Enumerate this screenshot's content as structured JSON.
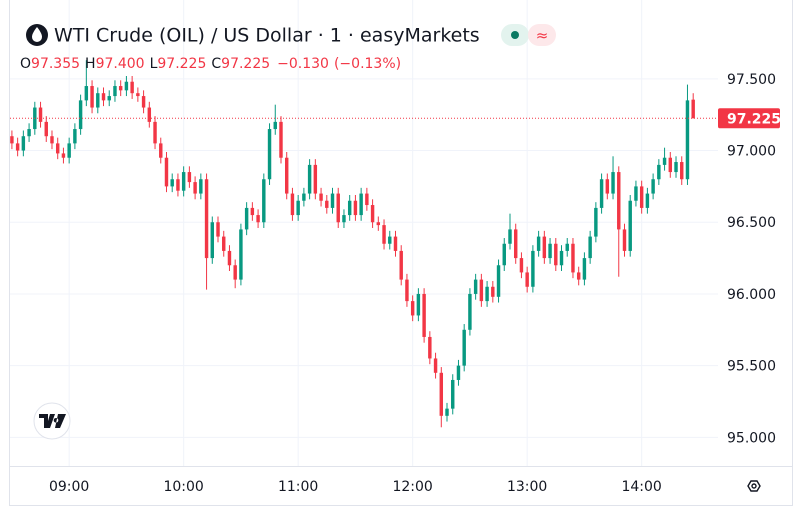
{
  "chart_data": {
    "type": "candlestick",
    "title": "WTI Crude (OIL) / US Dollar · 1 · easyMarkets",
    "badge": "≈",
    "ohlc_legend": [
      {
        "label": "O",
        "value": "97.355"
      },
      {
        "label": "H",
        "value": "97.400"
      },
      {
        "label": "L",
        "value": "97.225"
      },
      {
        "label": "C",
        "value": "97.225"
      }
    ],
    "change": "−0.130",
    "change_percent": "(−0.13%)",
    "x": [
      "08:30",
      "08:33",
      "08:36",
      "08:39",
      "08:42",
      "08:45",
      "08:48",
      "08:51",
      "08:54",
      "08:57",
      "09:00",
      "09:03",
      "09:06",
      "09:09",
      "09:12",
      "09:15",
      "09:18",
      "09:21",
      "09:24",
      "09:27",
      "09:30",
      "09:33",
      "09:36",
      "09:39",
      "09:42",
      "09:45",
      "09:48",
      "09:51",
      "09:54",
      "09:57",
      "10:00",
      "10:03",
      "10:06",
      "10:09",
      "10:12",
      "10:15",
      "10:18",
      "10:21",
      "10:24",
      "10:27",
      "10:30",
      "10:33",
      "10:36",
      "10:39",
      "10:42",
      "10:45",
      "10:48",
      "10:51",
      "10:54",
      "10:57",
      "11:00",
      "11:03",
      "11:06",
      "11:09",
      "11:12",
      "11:15",
      "11:18",
      "11:21",
      "11:24",
      "11:27",
      "11:30",
      "11:33",
      "11:36",
      "11:39",
      "11:42",
      "11:45",
      "11:48",
      "11:51",
      "11:54",
      "11:57",
      "12:00",
      "12:03",
      "12:06",
      "12:09",
      "12:12",
      "12:15",
      "12:18",
      "12:21",
      "12:24",
      "12:27",
      "12:30",
      "12:33",
      "12:36",
      "12:39",
      "12:42",
      "12:45",
      "12:48",
      "12:51",
      "12:54",
      "12:57",
      "13:00",
      "13:03",
      "13:06",
      "13:09",
      "13:12",
      "13:15",
      "13:18",
      "13:21",
      "13:24",
      "13:27",
      "13:30",
      "13:33",
      "13:36",
      "13:39",
      "13:42",
      "13:45",
      "13:48",
      "13:51",
      "13:54",
      "13:57",
      "14:00",
      "14:03",
      "14:06",
      "14:09",
      "14:12",
      "14:15",
      "14:18",
      "14:21",
      "14:24",
      "14:27"
    ],
    "open": [
      97.1,
      97.05,
      97.0,
      97.1,
      97.15,
      97.3,
      97.2,
      97.1,
      97.05,
      96.98,
      96.95,
      97.05,
      97.15,
      97.35,
      97.45,
      97.3,
      97.4,
      97.35,
      97.38,
      97.45,
      97.42,
      97.48,
      97.4,
      97.38,
      97.3,
      97.2,
      97.05,
      96.95,
      96.75,
      96.8,
      96.72,
      96.85,
      96.78,
      96.7,
      96.8,
      96.25,
      96.5,
      96.4,
      96.3,
      96.2,
      96.1,
      96.45,
      96.6,
      96.55,
      96.5,
      96.8,
      97.15,
      97.2,
      96.95,
      96.7,
      96.55,
      96.65,
      96.7,
      96.9,
      96.7,
      96.65,
      96.6,
      96.7,
      96.5,
      96.55,
      96.65,
      96.55,
      96.7,
      96.62,
      96.5,
      96.48,
      96.35,
      96.4,
      96.3,
      96.1,
      95.95,
      95.85,
      96.0,
      95.7,
      95.55,
      95.45,
      95.15,
      95.2,
      95.4,
      95.5,
      95.75,
      96.0,
      96.1,
      95.95,
      96.05,
      95.98,
      96.2,
      96.35,
      96.45,
      96.25,
      96.15,
      96.05,
      96.3,
      96.4,
      96.25,
      96.35,
      96.2,
      96.3,
      96.35,
      96.15,
      96.1,
      96.25,
      96.4,
      96.6,
      96.8,
      96.7,
      96.85,
      96.45,
      96.3,
      96.65,
      96.75,
      96.6,
      96.7,
      96.8,
      96.9,
      96.95,
      96.85,
      96.92,
      96.8,
      97.355
    ],
    "high": [
      97.14,
      97.09,
      97.14,
      97.19,
      97.34,
      97.34,
      97.24,
      97.14,
      97.09,
      97.02,
      97.09,
      97.19,
      97.39,
      97.63,
      97.49,
      97.44,
      97.44,
      97.42,
      97.49,
      97.49,
      97.52,
      97.52,
      97.44,
      97.42,
      97.34,
      97.24,
      97.09,
      96.99,
      96.84,
      96.84,
      96.89,
      96.89,
      96.82,
      96.84,
      96.84,
      96.54,
      96.54,
      96.44,
      96.34,
      96.24,
      96.49,
      96.64,
      96.64,
      96.59,
      96.84,
      97.19,
      97.32,
      97.24,
      96.99,
      96.74,
      96.69,
      96.74,
      96.94,
      96.94,
      96.74,
      96.69,
      96.74,
      96.74,
      96.59,
      96.69,
      96.69,
      96.74,
      96.74,
      96.66,
      96.54,
      96.52,
      96.44,
      96.44,
      96.34,
      96.14,
      95.99,
      96.04,
      96.04,
      95.74,
      95.59,
      95.49,
      95.24,
      95.44,
      95.54,
      95.79,
      96.04,
      96.14,
      96.14,
      96.09,
      96.09,
      96.24,
      96.39,
      96.56,
      96.49,
      96.29,
      96.19,
      96.34,
      96.44,
      96.44,
      96.39,
      96.39,
      96.34,
      96.39,
      96.39,
      96.19,
      96.29,
      96.44,
      96.64,
      96.84,
      96.84,
      96.96,
      96.89,
      96.49,
      96.69,
      96.79,
      96.79,
      96.74,
      96.84,
      96.94,
      97.02,
      96.99,
      96.96,
      96.96,
      97.46,
      97.4
    ],
    "low": [
      97.01,
      96.96,
      96.96,
      97.06,
      97.11,
      97.16,
      97.06,
      97.01,
      96.94,
      96.91,
      96.91,
      97.01,
      97.11,
      97.31,
      97.26,
      97.26,
      97.31,
      97.31,
      97.34,
      97.38,
      97.38,
      97.36,
      97.34,
      97.26,
      97.16,
      97.01,
      96.91,
      96.71,
      96.71,
      96.68,
      96.68,
      96.74,
      96.66,
      96.66,
      96.03,
      96.21,
      96.36,
      96.26,
      96.16,
      96.04,
      96.06,
      96.41,
      96.51,
      96.46,
      96.46,
      96.76,
      97.11,
      96.91,
      96.66,
      96.51,
      96.51,
      96.61,
      96.66,
      96.66,
      96.61,
      96.56,
      96.56,
      96.46,
      96.46,
      96.51,
      96.51,
      96.51,
      96.58,
      96.46,
      96.44,
      96.31,
      96.31,
      96.26,
      96.06,
      95.91,
      95.81,
      95.81,
      95.66,
      95.51,
      95.41,
      95.07,
      95.11,
      95.16,
      95.36,
      95.46,
      95.71,
      95.96,
      95.91,
      95.91,
      95.94,
      95.94,
      96.16,
      96.31,
      96.21,
      96.11,
      96.01,
      96.01,
      96.26,
      96.21,
      96.21,
      96.16,
      96.16,
      96.26,
      96.11,
      96.06,
      96.06,
      96.21,
      96.36,
      96.56,
      96.66,
      96.66,
      96.12,
      96.26,
      96.26,
      96.61,
      96.56,
      96.56,
      96.66,
      96.76,
      96.86,
      96.81,
      96.81,
      96.76,
      96.76,
      97.225
    ],
    "close": [
      97.05,
      97.0,
      97.1,
      97.15,
      97.3,
      97.2,
      97.1,
      97.05,
      96.98,
      96.95,
      97.05,
      97.15,
      97.35,
      97.45,
      97.3,
      97.4,
      97.35,
      97.38,
      97.45,
      97.42,
      97.48,
      97.4,
      97.38,
      97.3,
      97.2,
      97.05,
      96.95,
      96.75,
      96.8,
      96.72,
      96.85,
      96.78,
      96.7,
      96.8,
      96.25,
      96.5,
      96.4,
      96.3,
      96.2,
      96.1,
      96.45,
      96.6,
      96.55,
      96.5,
      96.8,
      97.15,
      97.2,
      96.95,
      96.7,
      96.55,
      96.65,
      96.7,
      96.9,
      96.7,
      96.65,
      96.6,
      96.7,
      96.5,
      96.55,
      96.65,
      96.55,
      96.7,
      96.62,
      96.5,
      96.48,
      96.35,
      96.4,
      96.3,
      96.1,
      95.95,
      95.85,
      96.0,
      95.7,
      95.55,
      95.45,
      95.15,
      95.2,
      95.4,
      95.5,
      95.75,
      96.0,
      96.1,
      95.95,
      96.05,
      95.98,
      96.2,
      96.35,
      96.45,
      96.25,
      96.15,
      96.05,
      96.3,
      96.4,
      96.25,
      96.35,
      96.2,
      96.3,
      96.35,
      96.15,
      96.1,
      96.25,
      96.4,
      96.6,
      96.8,
      96.7,
      96.85,
      96.45,
      96.3,
      96.65,
      96.75,
      96.6,
      96.7,
      96.8,
      96.9,
      96.95,
      96.85,
      96.92,
      96.8,
      97.35,
      97.225
    ],
    "up_color": "#089981",
    "down_color": "#f23645",
    "xlim": [
      "08:29",
      "14:40"
    ],
    "xticks": [
      "09:00",
      "10:00",
      "11:00",
      "12:00",
      "13:00",
      "14:00"
    ],
    "ylim": [
      94.8,
      98.05
    ],
    "yticks": [
      {
        "value": 95,
        "label": "95.000"
      },
      {
        "value": 95.5,
        "label": "95.500"
      },
      {
        "value": 96,
        "label": "96.000"
      },
      {
        "value": 96.5,
        "label": "96.500"
      },
      {
        "value": 97,
        "label": "97.000"
      },
      {
        "value": 97.5,
        "label": "97.500"
      }
    ],
    "grid": true,
    "last_price": {
      "value": 97.225,
      "label": "97.225"
    }
  }
}
